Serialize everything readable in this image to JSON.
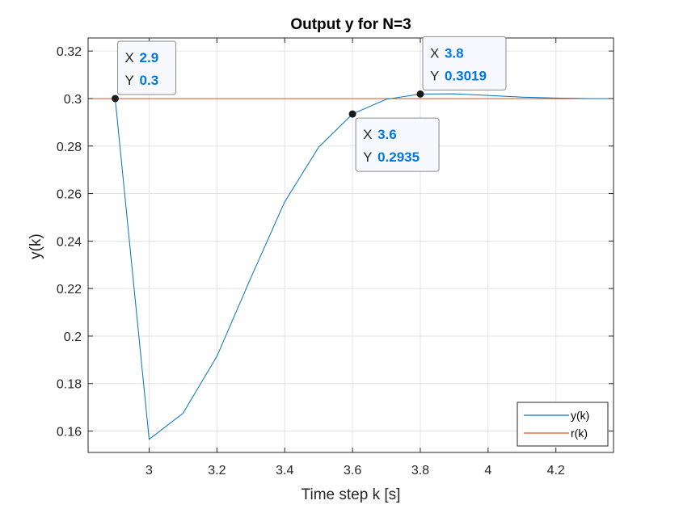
{
  "chart_data": {
    "type": "line",
    "title": "Output y for N=3",
    "xlabel": "Time step k [s]",
    "ylabel": "y(k)",
    "xlim": [
      2.82,
      4.37
    ],
    "ylim": [
      0.151,
      0.3255
    ],
    "xticks": [
      3,
      3.2,
      3.4,
      3.6,
      3.8,
      4,
      4.2
    ],
    "xtick_labels": [
      "3",
      "3.2",
      "3.4",
      "3.6",
      "3.8",
      "4",
      "4.2"
    ],
    "yticks": [
      0.16,
      0.18,
      0.2,
      0.22,
      0.24,
      0.26,
      0.28,
      0.3,
      0.32
    ],
    "ytick_labels": [
      "0.16",
      "0.18",
      "0.2",
      "0.22",
      "0.24",
      "0.26",
      "0.28",
      "0.3",
      "0.32"
    ],
    "grid": true,
    "legend_position": "bottom-right",
    "series": [
      {
        "name": "y(k)",
        "color": "#0072BD",
        "x": [
          2.9,
          3.0,
          3.1,
          3.2,
          3.3,
          3.4,
          3.5,
          3.6,
          3.7,
          3.8,
          3.9,
          4.0,
          4.1,
          4.2,
          4.3,
          4.37
        ],
        "y": [
          0.3,
          0.1565,
          0.1675,
          0.1915,
          0.2245,
          0.2565,
          0.2795,
          0.2935,
          0.2997,
          0.3019,
          0.302,
          0.3013,
          0.3006,
          0.3002,
          0.3,
          0.3
        ]
      },
      {
        "name": "r(k)",
        "color": "#D95319",
        "x": [
          2.82,
          4.37
        ],
        "y": [
          0.3,
          0.3
        ]
      }
    ],
    "datatips": [
      {
        "x": 2.9,
        "y": 0.3,
        "x_label": "X",
        "y_label": "Y",
        "x_text": "2.9",
        "y_text": "0.3",
        "placement": "above-right"
      },
      {
        "x": 3.6,
        "y": 0.2935,
        "x_label": "X",
        "y_label": "Y",
        "x_text": "3.6",
        "y_text": "0.2935",
        "placement": "below-right"
      },
      {
        "x": 3.8,
        "y": 0.3019,
        "x_label": "X",
        "y_label": "Y",
        "x_text": "3.8",
        "y_text": "0.3019",
        "placement": "above-right"
      }
    ]
  }
}
